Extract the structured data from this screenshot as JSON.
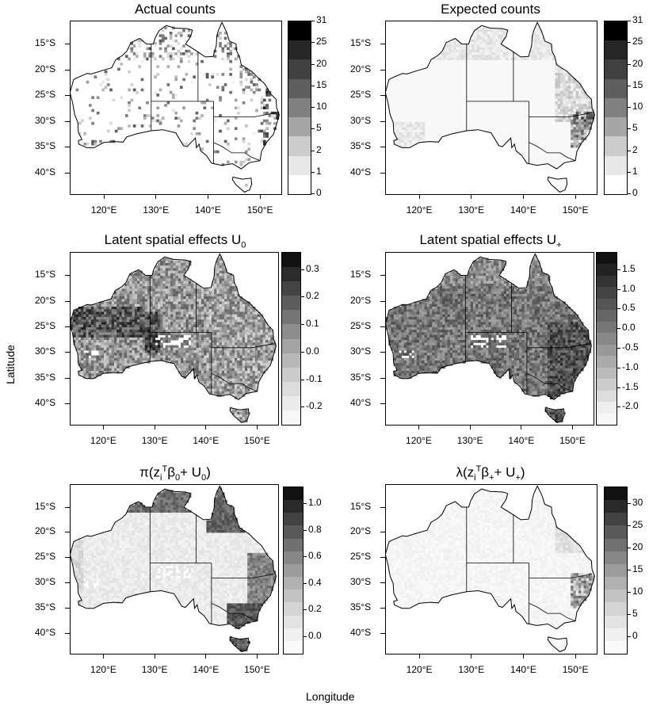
{
  "figure": {
    "xlabel": "Longitude",
    "ylabel": "Latitude"
  },
  "lat_ticks": [
    "15°S",
    "20°S",
    "25°S",
    "30°S",
    "35°S",
    "40°S"
  ],
  "lon_ticks": [
    "120°E",
    "130°E",
    "140°E",
    "150°E"
  ],
  "panels": [
    {
      "id": "actual",
      "title": "Actual counts",
      "legend_ticks": [
        "31",
        "25",
        "20",
        "15",
        "10",
        "5",
        "2",
        "1",
        "0"
      ],
      "legend_colors": [
        "#000000",
        "#262626",
        "#404040",
        "#5e5e5e",
        "#808080",
        "#a6a6a6",
        "#cccccc",
        "#e8e8e8",
        "#ffffff"
      ]
    },
    {
      "id": "expected",
      "title": "Expected counts",
      "legend_ticks": [
        "31",
        "25",
        "20",
        "15",
        "10",
        "5",
        "2",
        "1",
        "0"
      ],
      "legend_colors": [
        "#000000",
        "#262626",
        "#404040",
        "#5e5e5e",
        "#808080",
        "#a6a6a6",
        "#cccccc",
        "#e8e8e8",
        "#ffffff"
      ]
    },
    {
      "id": "u0",
      "title_main": "Latent spatial effects U",
      "title_sub": "0",
      "legend_ticks": [
        "0.3",
        "0.2",
        "0.1",
        "0.0",
        "-0.1",
        "-0.2"
      ],
      "legend_colors": [
        "#111111",
        "#2b2b2b",
        "#444444",
        "#5d5d5d",
        "#757575",
        "#8d8d8d",
        "#a3a3a3",
        "#b8b8b8",
        "#cbcbcb",
        "#dcdcdc",
        "#ebebeb",
        "#f7f7f7"
      ]
    },
    {
      "id": "uplus",
      "title_main": "Latent spatial effects U",
      "title_sub": "+",
      "legend_ticks": [
        "1.5",
        "1.0",
        "0.5",
        "0.0",
        "-0.5",
        "-1.0",
        "-1.5",
        "-2.0"
      ],
      "legend_colors": [
        "#111111",
        "#222222",
        "#333333",
        "#444444",
        "#555555",
        "#666666",
        "#777777",
        "#888888",
        "#999999",
        "#aaaaaa",
        "#bbbbbb",
        "#cccccc",
        "#dddddd",
        "#eeeeee",
        "#f7f7f7"
      ]
    },
    {
      "id": "pi",
      "title_pre": "π(z",
      "title_sub1": "i",
      "title_sup1": "T",
      "title_mid": "β",
      "title_sub2": "0",
      "title_post": "+ U",
      "title_sub3": "0",
      "title_end": ")",
      "legend_ticks": [
        "1.0",
        "0.8",
        "0.6",
        "0.4",
        "0.2",
        "0.0"
      ],
      "legend_colors": [
        "#111111",
        "#2a2a2a",
        "#424242",
        "#595959",
        "#707070",
        "#878787",
        "#9c9c9c",
        "#b0b0b0",
        "#c3c3c3",
        "#d4d4d4",
        "#e3e3e3",
        "#f0f0f0",
        "#fafafa"
      ]
    },
    {
      "id": "lambda",
      "title_pre": "λ(z",
      "title_sub1": "i",
      "title_sup1": "T",
      "title_mid": "β",
      "title_sub2": "+",
      "title_post": "+ U",
      "title_sub3": "+",
      "title_end": ")",
      "legend_ticks": [
        "30",
        "25",
        "20",
        "15",
        "10",
        "5",
        "0"
      ],
      "legend_colors": [
        "#111111",
        "#2a2a2a",
        "#424242",
        "#595959",
        "#707070",
        "#878787",
        "#9c9c9c",
        "#b0b0b0",
        "#c3c3c3",
        "#d4d4d4",
        "#e3e3e3",
        "#f0f0f0",
        "#fafafa"
      ]
    }
  ]
}
